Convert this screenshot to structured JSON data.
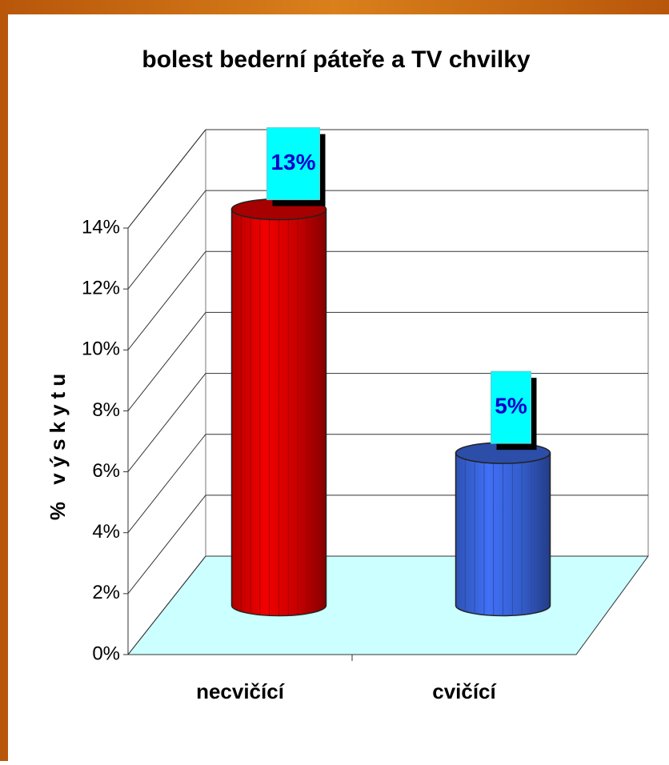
{
  "chart_data": {
    "type": "bar3d",
    "title": "bolest bederní páteře a TV chvilky",
    "ylabel": "% výskytu",
    "categories": [
      "necvičící",
      "cvičící"
    ],
    "values": [
      13,
      5
    ],
    "value_labels": [
      "13%",
      "5%"
    ],
    "colors": [
      "#dd0000",
      "#3a66e0"
    ],
    "ylim": [
      0,
      14
    ],
    "yticks": [
      {
        "value": 0,
        "label": "0%"
      },
      {
        "value": 2,
        "label": "2%"
      },
      {
        "value": 4,
        "label": "4%"
      },
      {
        "value": 6,
        "label": "6%"
      },
      {
        "value": 8,
        "label": "8%"
      },
      {
        "value": 10,
        "label": "10%"
      },
      {
        "value": 12,
        "label": "12%"
      },
      {
        "value": 14,
        "label": "14%"
      }
    ],
    "grid": true
  }
}
